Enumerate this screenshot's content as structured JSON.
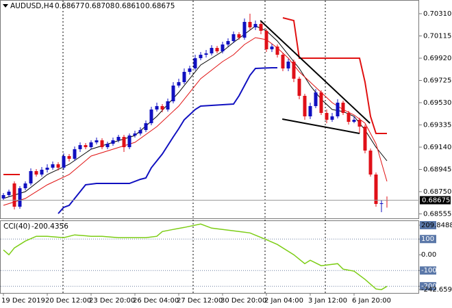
{
  "chart_data": [
    {
      "type": "candlestick",
      "symbol": "AUDUSD,H4",
      "ohlc_labels": [
        "0.68677",
        "0.68708",
        "0.68610",
        "0.68675"
      ],
      "categories": [
        "19 Dec 2019",
        null,
        null,
        null,
        null,
        null,
        null,
        null,
        "20 Dec 12:00",
        null,
        null,
        null,
        null,
        null,
        null,
        null,
        "23 Dec 20:00",
        null,
        null,
        null,
        null,
        null,
        null,
        null,
        "26 Dec 04:00",
        null,
        null,
        null,
        null,
        null,
        null,
        null,
        "27 Dec 12:00",
        null,
        null,
        null,
        null,
        null,
        null,
        null,
        "30 Dec 20:00",
        null,
        null,
        null,
        null,
        null,
        null,
        null,
        "2 Jan 04:00",
        null,
        null,
        null,
        null,
        null,
        null,
        null,
        "3 Jan 12:00",
        null,
        null,
        null,
        null,
        null,
        null,
        null,
        "6 Jan 20:00",
        null,
        null,
        null,
        null,
        null,
        null
      ],
      "open": [
        0.6869,
        0.6872,
        0.68822,
        0.68618,
        0.6878,
        0.68822,
        0.6893,
        0.689,
        0.68942,
        0.6896,
        0.6899,
        0.6896,
        0.69062,
        0.69038,
        0.69122,
        0.69158,
        0.6914,
        0.69182,
        0.692,
        0.6914,
        0.6917,
        0.692,
        0.6923,
        0.6914,
        0.69242,
        0.6926,
        0.6929,
        0.6935,
        0.6947,
        0.695,
        0.6947,
        0.69542,
        0.6968,
        0.6971,
        0.698,
        0.6983,
        0.6992,
        0.6995,
        0.69962,
        0.7001,
        0.6998,
        0.7004,
        0.7007,
        0.7013,
        0.701,
        0.70238,
        0.7019,
        0.7022,
        0.7016,
        0.69998,
        0.70022,
        0.6995,
        0.6983,
        0.6989,
        0.6974,
        0.6959,
        0.6941,
        0.695,
        0.6962,
        0.6944,
        0.6938,
        0.6941,
        0.6953,
        0.6944,
        0.69362,
        0.6938,
        0.6932,
        0.6911,
        0.689,
        0.68642,
        0.68677
      ],
      "high": [
        0.68738,
        0.68768,
        0.6884,
        0.68798,
        0.6884,
        0.68954,
        0.68948,
        0.68966,
        0.6899,
        0.69014,
        0.69008,
        0.69086,
        0.6908,
        0.69146,
        0.69182,
        0.69176,
        0.692,
        0.69224,
        0.69218,
        0.69188,
        0.69224,
        0.69248,
        0.69248,
        0.6926,
        0.69284,
        0.69314,
        0.69374,
        0.69494,
        0.6953,
        0.69518,
        0.69566,
        0.6971,
        0.6974,
        0.6983,
        0.69854,
        0.6995,
        0.69974,
        0.69992,
        0.70034,
        0.70028,
        0.70064,
        0.70094,
        0.70154,
        0.70148,
        0.70268,
        0.7031,
        0.7025,
        0.70238,
        0.70178,
        0.70046,
        0.7004,
        0.69968,
        0.69914,
        0.69908,
        0.69758,
        0.69608,
        0.6953,
        0.6965,
        0.69638,
        0.6947,
        0.6944,
        0.6956,
        0.69548,
        0.69458,
        0.6941,
        0.69398,
        0.69338,
        0.69128,
        0.68918,
        0.68672,
        0.68708
      ],
      "low": [
        0.68672,
        0.68702,
        0.68594,
        0.686,
        0.68762,
        0.68804,
        0.68882,
        0.68882,
        0.68918,
        0.68942,
        0.68936,
        0.68942,
        0.69014,
        0.6902,
        0.69098,
        0.69122,
        0.69122,
        0.69164,
        0.69122,
        0.69122,
        0.69152,
        0.69182,
        0.69098,
        0.69122,
        0.69224,
        0.69242,
        0.69272,
        0.69332,
        0.69452,
        0.69446,
        0.69452,
        0.69524,
        0.69662,
        0.69692,
        0.69776,
        0.69812,
        0.69902,
        0.69926,
        0.69944,
        0.69962,
        0.69962,
        0.70022,
        0.70052,
        0.70082,
        0.70082,
        0.70166,
        0.70166,
        0.7013,
        0.69974,
        0.69974,
        0.69926,
        0.69806,
        0.69806,
        0.6971,
        0.6956,
        0.6938,
        0.69386,
        0.69482,
        0.69422,
        0.6935,
        0.69362,
        0.69392,
        0.69422,
        0.69338,
        0.6935,
        0.6926,
        0.69086,
        0.68882,
        0.68618,
        0.6857,
        0.6861
      ],
      "close": [
        0.6872,
        0.6875,
        0.68618,
        0.6878,
        0.68822,
        0.6893,
        0.689,
        0.68942,
        0.6896,
        0.6899,
        0.6896,
        0.69062,
        0.69038,
        0.69122,
        0.69158,
        0.6914,
        0.69182,
        0.692,
        0.6914,
        0.6917,
        0.692,
        0.6923,
        0.6914,
        0.69242,
        0.6926,
        0.6929,
        0.6935,
        0.6947,
        0.695,
        0.6947,
        0.69542,
        0.6968,
        0.6971,
        0.698,
        0.6983,
        0.6992,
        0.6995,
        0.69962,
        0.7001,
        0.6998,
        0.7004,
        0.7007,
        0.7013,
        0.701,
        0.70238,
        0.7019,
        0.7022,
        0.7016,
        0.69998,
        0.70022,
        0.6995,
        0.6983,
        0.6989,
        0.6974,
        0.6959,
        0.6941,
        0.695,
        0.6962,
        0.6944,
        0.6938,
        0.6941,
        0.6953,
        0.6944,
        0.69362,
        0.6938,
        0.6932,
        0.6911,
        0.689,
        0.68642,
        0.68648,
        0.68675
      ],
      "up_color": "#1010c0",
      "down_color": "#e01018",
      "ylim": [
        0.68522,
        0.70412
      ],
      "yticks": [
        {
          "value": 0.7031,
          "label": "0.70310"
        },
        0.70115,
        {
          "value": 0.6992,
          "label": "0.69920"
        },
        0.69725,
        {
          "value": 0.6953,
          "label": "0.69530"
        },
        0.69335,
        {
          "value": 0.6914,
          "label": "0.69140"
        },
        0.68945,
        {
          "value": 0.6875,
          "label": "0.68750"
        },
        0.68555
      ],
      "bands": [
        {
          "color": "#1010c0",
          "x": [
            10,
            11,
            12,
            13,
            14,
            15,
            17,
            23,
            25,
            26,
            27,
            29,
            31,
            32,
            33,
            35,
            36,
            40,
            42,
            43,
            44,
            45,
            46,
            49,
            50
          ],
          "values": [
            0.68558,
            0.68612,
            0.6863,
            0.6869,
            0.6875,
            0.6881,
            0.68822,
            0.68822,
            0.68858,
            0.6887,
            0.6896,
            0.6908,
            0.6923,
            0.69302,
            0.6938,
            0.6947,
            0.695,
            0.69512,
            0.69518,
            0.6959,
            0.6968,
            0.6977,
            0.6983,
            0.69836,
            0.69836
          ]
        },
        {
          "color": "#e01010",
          "x": [
            0,
            3,
            4,
            51,
            53,
            54,
            65,
            66,
            67,
            68,
            70
          ],
          "values": [
            0.689,
            0.689,
            null,
            0.70274,
            0.7025,
            0.6992,
            0.6992,
            0.6971,
            0.6941,
            0.6926,
            0.6926
          ]
        }
      ],
      "averages": [
        {
          "color": "#000000",
          "x": [
            0,
            4,
            8,
            12,
            16,
            20,
            24,
            28,
            32,
            36,
            40,
            42,
            44,
            46,
            48,
            50,
            52,
            54,
            56,
            58,
            60,
            62,
            64,
            66,
            68,
            70
          ],
          "values": [
            0.6869,
            0.6875,
            0.689,
            0.6899,
            0.69122,
            0.69182,
            0.69242,
            0.6941,
            0.6962,
            0.6986,
            0.6998,
            0.70058,
            0.7013,
            0.70202,
            0.7016,
            0.7007,
            0.6995,
            0.6983,
            0.6968,
            0.6956,
            0.6947,
            0.69452,
            0.6941,
            0.6929,
            0.6914,
            0.6902
          ]
        },
        {
          "color": "#e01010",
          "x": [
            0,
            4,
            8,
            12,
            16,
            20,
            24,
            28,
            32,
            36,
            40,
            42,
            44,
            46,
            48,
            50,
            52,
            54,
            56,
            58,
            60,
            62,
            64,
            66,
            68,
            70
          ],
          "values": [
            0.6863,
            0.6869,
            0.6881,
            0.689,
            0.69062,
            0.69122,
            0.69182,
            0.6932,
            0.695,
            0.6974,
            0.6989,
            0.6995,
            0.7004,
            0.701,
            0.70082,
            0.7001,
            0.6992,
            0.698,
            0.6971,
            0.6962,
            0.6953,
            0.6947,
            0.69422,
            0.6935,
            0.6917,
            0.6884
          ]
        }
      ],
      "trendlines": [
        {
          "color": "#000000",
          "x": [
            46.9,
            66.9
          ],
          "values": [
            0.7025,
            0.6935
          ]
        },
        {
          "color": "#000000",
          "x": [
            50.9,
            65
          ],
          "values": [
            0.69386,
            0.6926
          ]
        }
      ]
    },
    {
      "type": "line",
      "title": "CCI(40)",
      "color": "#7ccd14",
      "x": [
        0,
        1,
        2,
        4,
        6,
        8,
        11,
        13,
        16,
        18,
        21,
        23,
        26,
        28,
        29,
        31,
        33,
        36,
        38,
        41,
        43,
        45,
        48,
        50,
        53,
        55,
        56,
        58,
        61,
        62,
        64,
        66,
        68,
        69,
        70
      ],
      "values": [
        30.4,
        0,
        43.5,
        87,
        117.4,
        117.4,
        108.7,
        126.1,
        117.4,
        117.4,
        108.7,
        108.7,
        108.7,
        117.4,
        147.8,
        160.9,
        173.9,
        195.7,
        169.6,
        156.5,
        147.8,
        139.1,
        95.7,
        65.2,
        0,
        -56.5,
        -34.8,
        -69.6,
        -56.5,
        -91.3,
        -104.3,
        -156.5,
        -217.4,
        -221.7,
        -200.4356
      ],
      "ylim": [
        -242.6591,
        209.8488
      ],
      "yticks": [
        209.8488,
        100,
        {
          "value": 0,
          "label": "0.00"
        },
        -100,
        -200,
        -242.6591
      ],
      "levels": [
        100,
        -100,
        -200
      ]
    }
  ]
}
